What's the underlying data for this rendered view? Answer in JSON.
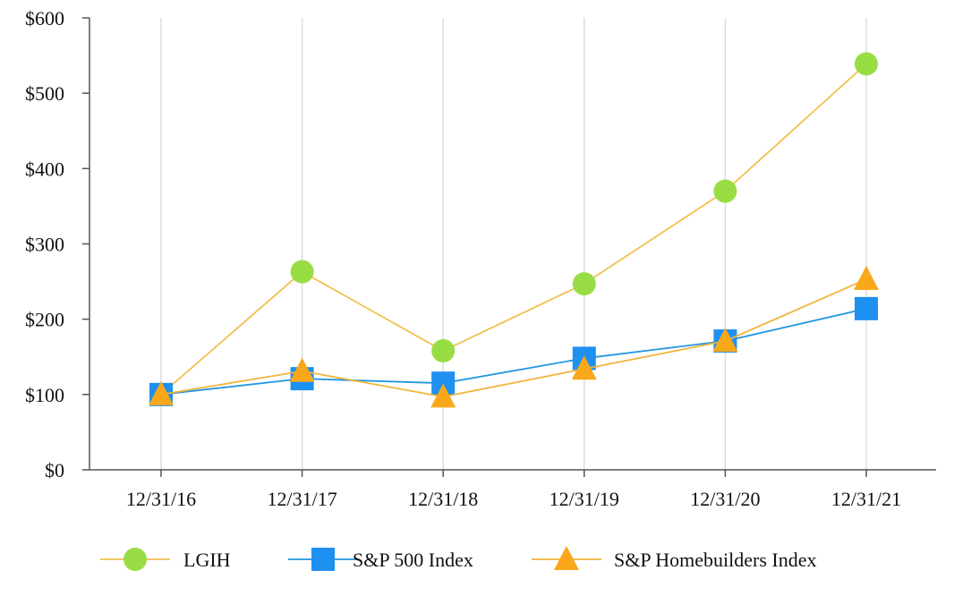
{
  "chart_data": {
    "type": "line",
    "title": "",
    "xlabel": "",
    "ylabel": "",
    "categories": [
      "12/31/16",
      "12/31/17",
      "12/31/18",
      "12/31/19",
      "12/31/20",
      "12/31/21"
    ],
    "ylim": [
      0,
      600
    ],
    "yticks": [
      0,
      100,
      200,
      300,
      400,
      500,
      600
    ],
    "ytick_labels": [
      "$0",
      "$100",
      "$200",
      "$300",
      "$400",
      "$500",
      "$600"
    ],
    "grid": "vertical",
    "legend_position": "bottom",
    "series": [
      {
        "name": "LGIH",
        "values": [
          100,
          263,
          158,
          247,
          370,
          539
        ],
        "marker": "circle",
        "marker_color": "#99DD44",
        "line_color": "#F2C14E"
      },
      {
        "name": "S&P 500 Index",
        "values": [
          100,
          121,
          115,
          148,
          171,
          214
        ],
        "marker": "square",
        "marker_color": "#1E90F0",
        "line_color": "#2196E0"
      },
      {
        "name": "S&P Homebuilders Index",
        "values": [
          100,
          131,
          97,
          134,
          171,
          253
        ],
        "marker": "triangle",
        "marker_color": "#F9A81A",
        "line_color": "#F2B53C"
      }
    ]
  }
}
